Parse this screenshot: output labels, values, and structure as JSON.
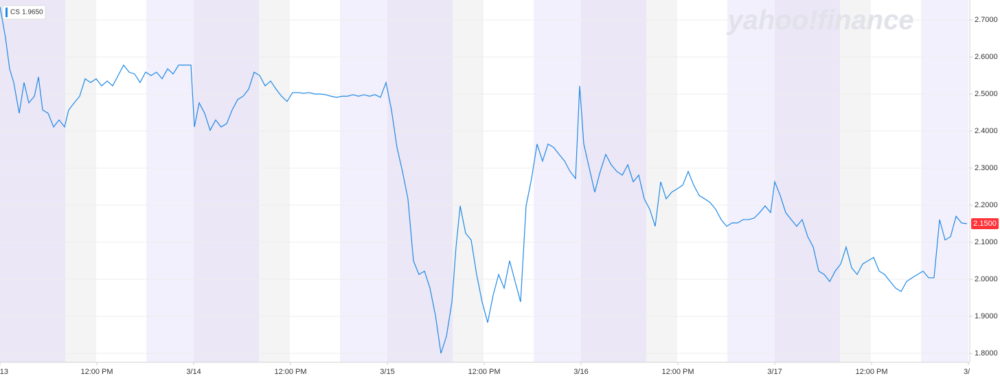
{
  "chart_data": {
    "type": "line",
    "watermark": "yahoo!finance",
    "quote": {
      "value": 1.965,
      "label": "1.9650"
    },
    "last_price": {
      "value": 2.15,
      "label": "2.1500"
    },
    "xlim": [
      0,
      120.17
    ],
    "xticks": [
      {
        "value": 0,
        "label": "13"
      },
      {
        "value": 12,
        "label": "12:00 PM"
      },
      {
        "value": 24,
        "label": "3/14"
      },
      {
        "value": 36,
        "label": "12:00 PM"
      },
      {
        "value": 48,
        "label": "3/15"
      },
      {
        "value": 60,
        "label": "12:00 PM"
      },
      {
        "value": 72,
        "label": "3/16"
      },
      {
        "value": 84,
        "label": "12:00 PM"
      },
      {
        "value": 96,
        "label": "3/17"
      },
      {
        "value": 108,
        "label": "12:00 PM"
      },
      {
        "value": 120,
        "label": "3/"
      }
    ],
    "ylim": [
      1.7759,
      2.7537
    ],
    "yticks": [
      {
        "value": 1.8,
        "label": "1.8000"
      },
      {
        "value": 1.9,
        "label": "1.9000"
      },
      {
        "value": 2.0,
        "label": "2.0000"
      },
      {
        "value": 2.1,
        "label": "2.1000"
      },
      {
        "value": 2.2,
        "label": "2.2000"
      },
      {
        "value": 2.3,
        "label": "2.3000"
      },
      {
        "value": 2.4,
        "label": "2.4000"
      },
      {
        "value": 2.5,
        "label": "2.5000"
      },
      {
        "value": 2.6,
        "label": "2.6000"
      },
      {
        "value": 2.7,
        "label": "2.7000"
      }
    ],
    "grid": true,
    "x": [
      0,
      0.68,
      1.19,
      1.7,
      2.38,
      2.98,
      3.57,
      4.26,
      4.77,
      5.28,
      5.96,
      6.64,
      7.32,
      8,
      8.51,
      9.19,
      9.87,
      10.55,
      11.23,
      11.91,
      12.6,
      13.28,
      13.96,
      14.64,
      15.32,
      16,
      16.68,
      17.36,
      18.04,
      18.72,
      19.4,
      20.09,
      20.77,
      21.45,
      22.13,
      22.81,
      23.66,
      24.09,
      24.68,
      25.36,
      26.04,
      26.72,
      27.4,
      28.09,
      28.77,
      29.45,
      30.13,
      30.81,
      31.49,
      32.17,
      32.85,
      33.53,
      34.21,
      34.89,
      35.57,
      36.26,
      36.94,
      37.62,
      38.3,
      38.98,
      39.66,
      40.34,
      41.02,
      41.7,
      42.38,
      43.06,
      43.74,
      44.43,
      45.11,
      45.79,
      46.47,
      47.15,
      47.83,
      48.51,
      49.19,
      49.87,
      50.55,
      51.23,
      51.91,
      52.6,
      53.28,
      53.96,
      54.64,
      55.32,
      56,
      56.51,
      57.02,
      57.7,
      58.38,
      59.06,
      59.74,
      60.43,
      61.11,
      61.79,
      62.47,
      63.15,
      63.83,
      64.51,
      65.19,
      65.87,
      66.55,
      67.23,
      67.91,
      68.6,
      69.28,
      69.96,
      70.64,
      71.32,
      71.83,
      72.34,
      73.02,
      73.7,
      74.38,
      75.06,
      75.74,
      76.43,
      77.11,
      77.79,
      78.47,
      79.15,
      79.83,
      80.51,
      81.19,
      81.87,
      82.55,
      83.23,
      83.91,
      84.6,
      85.28,
      85.96,
      86.64,
      87.32,
      88,
      88.68,
      89.36,
      90.04,
      90.72,
      91.4,
      92.09,
      92.77,
      93.45,
      94.13,
      94.81,
      95.49,
      96,
      96.68,
      97.36,
      98.04,
      98.72,
      99.4,
      100.09,
      100.77,
      101.45,
      102.13,
      102.81,
      103.49,
      104.17,
      104.85,
      105.53,
      106.21,
      106.89,
      107.57,
      108.26,
      108.94,
      109.62,
      110.3,
      110.98,
      111.66,
      112.34,
      113.02,
      113.7,
      114.38,
      115.06,
      115.74,
      116.43,
      117.11,
      117.79,
      118.47,
      119.15,
      119.83
    ],
    "series": [
      {
        "name": "CS",
        "color": "#1e88e5",
        "values": [
          2.735,
          2.652,
          2.568,
          2.531,
          2.448,
          2.531,
          2.476,
          2.494,
          2.546,
          2.457,
          2.448,
          2.411,
          2.43,
          2.411,
          2.457,
          2.476,
          2.494,
          2.541,
          2.531,
          2.541,
          2.522,
          2.535,
          2.522,
          2.55,
          2.578,
          2.559,
          2.554,
          2.531,
          2.559,
          2.55,
          2.559,
          2.541,
          2.568,
          2.554,
          2.578,
          2.578,
          2.578,
          2.411,
          2.476,
          2.448,
          2.402,
          2.43,
          2.411,
          2.42,
          2.457,
          2.485,
          2.494,
          2.513,
          2.559,
          2.55,
          2.522,
          2.535,
          2.513,
          2.494,
          2.48,
          2.504,
          2.504,
          2.502,
          2.504,
          2.5,
          2.5,
          2.498,
          2.494,
          2.491,
          2.494,
          2.494,
          2.498,
          2.494,
          2.498,
          2.494,
          2.498,
          2.491,
          2.531,
          2.457,
          2.356,
          2.291,
          2.217,
          2.05,
          2.013,
          2.022,
          1.976,
          1.902,
          1.8,
          1.846,
          1.939,
          2.087,
          2.198,
          2.124,
          2.106,
          2.013,
          1.939,
          1.883,
          1.957,
          2.013,
          1.976,
          2.05,
          1.994,
          1.939,
          2.198,
          2.272,
          2.365,
          2.319,
          2.365,
          2.356,
          2.337,
          2.319,
          2.291,
          2.272,
          2.522,
          2.365,
          2.3,
          2.235,
          2.291,
          2.337,
          2.309,
          2.291,
          2.281,
          2.309,
          2.263,
          2.281,
          2.217,
          2.189,
          2.143,
          2.263,
          2.217,
          2.235,
          2.244,
          2.254,
          2.291,
          2.254,
          2.226,
          2.217,
          2.207,
          2.189,
          2.161,
          2.143,
          2.152,
          2.152,
          2.161,
          2.161,
          2.165,
          2.18,
          2.198,
          2.18,
          2.263,
          2.226,
          2.18,
          2.161,
          2.143,
          2.161,
          2.115,
          2.087,
          2.022,
          2.013,
          1.994,
          2.022,
          2.041,
          2.087,
          2.031,
          2.013,
          2.041,
          2.05,
          2.059,
          2.022,
          2.013,
          1.994,
          1.976,
          1.967,
          1.994,
          2.004,
          2.013,
          2.022,
          2.004,
          2.004,
          2.161,
          2.106,
          2.115,
          2.17,
          2.152,
          2.15
        ]
      }
    ]
  }
}
